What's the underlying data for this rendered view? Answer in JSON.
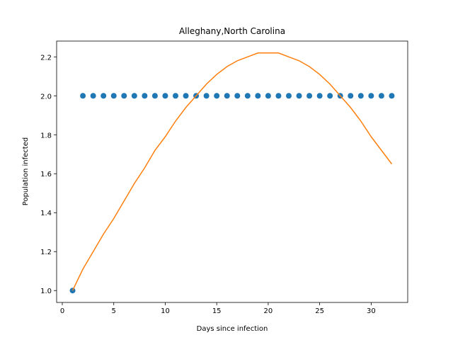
{
  "chart_data": {
    "type": "scatter",
    "title": "Alleghany,North Carolina",
    "xlabel": "Days since infection",
    "ylabel": "Population infected",
    "x": [
      1,
      2,
      3,
      4,
      5,
      6,
      7,
      8,
      9,
      10,
      11,
      12,
      13,
      14,
      15,
      16,
      17,
      18,
      19,
      20,
      21,
      22,
      23,
      24,
      25,
      26,
      27,
      28,
      29,
      30,
      31,
      32
    ],
    "series": [
      {
        "type": "scatter",
        "color": "#1f77b4",
        "values": [
          1.0,
          2.0,
          2.0,
          2.0,
          2.0,
          2.0,
          2.0,
          2.0,
          2.0,
          2.0,
          2.0,
          2.0,
          2.0,
          2.0,
          2.0,
          2.0,
          2.0,
          2.0,
          2.0,
          2.0,
          2.0,
          2.0,
          2.0,
          2.0,
          2.0,
          2.0,
          2.0,
          2.0,
          2.0,
          2.0,
          2.0,
          2.0
        ]
      },
      {
        "type": "line",
        "color": "#ff7f0e",
        "values": [
          1.0,
          1.11,
          1.2,
          1.29,
          1.37,
          1.46,
          1.55,
          1.63,
          1.72,
          1.79,
          1.87,
          1.94,
          2.0,
          2.06,
          2.11,
          2.15,
          2.18,
          2.2,
          2.22,
          2.22,
          2.22,
          2.2,
          2.18,
          2.15,
          2.11,
          2.06,
          2.0,
          1.94,
          1.87,
          1.79,
          1.72,
          1.65
        ]
      }
    ],
    "xlim": [
      -0.55,
      33.55
    ],
    "xticks": [
      0,
      5,
      10,
      15,
      20,
      25,
      30
    ],
    "ylim": [
      0.939,
      2.281
    ],
    "yticks": [
      {
        "value": 1.0,
        "label": "1.0"
      },
      1.2,
      1.4,
      1.6,
      1.8,
      {
        "value": 2.0,
        "label": "2.0"
      },
      2.2
    ]
  }
}
